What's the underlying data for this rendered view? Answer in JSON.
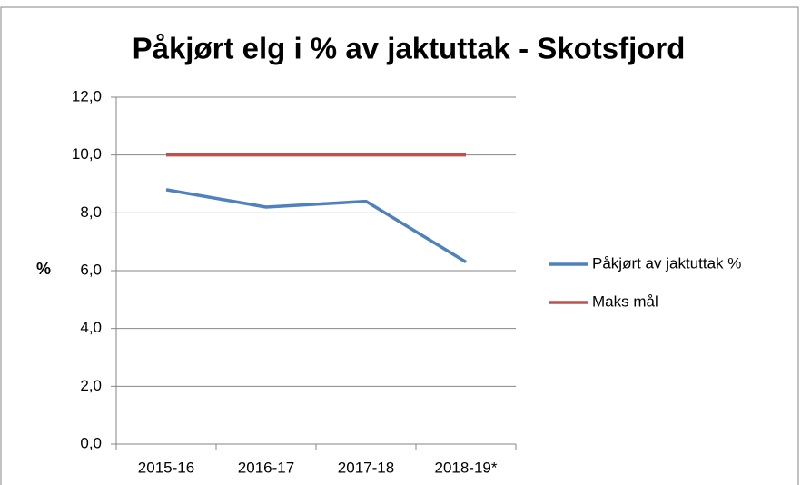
{
  "chart_data": {
    "type": "line",
    "title": "Påkjørt elg i % av jaktuttak - Skotsfjord",
    "y_label": "%",
    "categories": [
      "2015-16",
      "2016-17",
      "2017-18",
      "2018-19*"
    ],
    "series": [
      {
        "name": "Påkjørt av jaktuttak %",
        "color": "#4f81bd",
        "values": [
          8.8,
          8.2,
          8.4,
          6.3
        ]
      },
      {
        "name": "Maks mål",
        "color": "#c0504d",
        "values": [
          10,
          10,
          10,
          10
        ]
      }
    ],
    "ylim": [
      0,
      12
    ],
    "yticks": [
      {
        "value": 0,
        "label": "0,0"
      },
      {
        "value": 2,
        "label": "2,0"
      },
      {
        "value": 4,
        "label": "4,0"
      },
      {
        "value": 6,
        "label": "6,0"
      },
      {
        "value": 8,
        "label": "8,0"
      },
      {
        "value": 10,
        "label": "10,0"
      },
      {
        "value": 12,
        "label": "12,0"
      }
    ],
    "grid": true,
    "legend": "right"
  }
}
